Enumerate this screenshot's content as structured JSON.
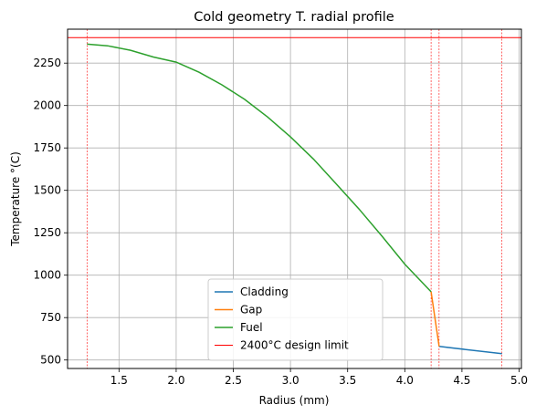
{
  "chart_data": {
    "type": "line",
    "title": "Cold geometry T. radial profile",
    "xlabel": "Radius (mm)",
    "ylabel": "Temperature °(C)",
    "xlim": [
      1.05,
      5.02
    ],
    "ylim": [
      450,
      2450
    ],
    "xticks": [
      1.5,
      2.0,
      2.5,
      3.0,
      3.5,
      4.0,
      4.5,
      5.0
    ],
    "yticks": [
      500,
      750,
      1000,
      1250,
      1500,
      1750,
      2000,
      2250
    ],
    "grid": true,
    "legend_position": "lower-center",
    "series": [
      {
        "name": "Cladding",
        "color": "#1f77b4",
        "x": [
          4.3,
          4.85
        ],
        "y": [
          580,
          537
        ]
      },
      {
        "name": "Gap",
        "color": "#ff7f0e",
        "x": [
          4.23,
          4.3
        ],
        "y": [
          902,
          580
        ]
      },
      {
        "name": "Fuel",
        "color": "#2ca02c",
        "x": [
          1.22,
          1.4,
          1.6,
          1.8,
          2.0,
          2.2,
          2.4,
          2.6,
          2.8,
          3.0,
          3.2,
          3.4,
          3.6,
          3.8,
          4.0,
          4.23
        ],
        "y": [
          2362,
          2352,
          2326,
          2286,
          2256,
          2196,
          2122,
          2036,
          1932,
          1815,
          1685,
          1538,
          1390,
          1230,
          1065,
          902
        ]
      },
      {
        "name": "2400°C design limit",
        "color": "#ff0000",
        "x": [
          1.05,
          5.02
        ],
        "y": [
          2400,
          2400
        ]
      }
    ],
    "vertical_markers": {
      "color": "#ff0000",
      "x": [
        1.22,
        4.23,
        4.3,
        4.85
      ]
    }
  }
}
